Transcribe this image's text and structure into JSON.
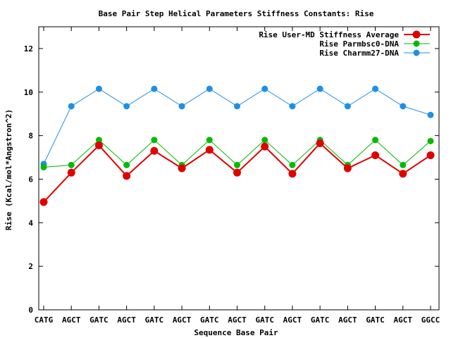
{
  "chart_data": {
    "type": "line",
    "title": "Base Pair Step Helical Parameters Stiffness Constants: Rise",
    "xlabel": "Sequence Base Pair",
    "ylabel": "Rise (Kcal/mol*Angstron^2)",
    "categories": [
      "CATG",
      "AGCT",
      "GATC",
      "AGCT",
      "GATC",
      "AGCT",
      "GATC",
      "AGCT",
      "GATC",
      "AGCT",
      "GATC",
      "AGCT",
      "GATC",
      "AGCT",
      "GGCC"
    ],
    "ylim": [
      0,
      13
    ],
    "yticks": [
      "0",
      "2",
      "4",
      "6",
      "8",
      "10",
      "12"
    ],
    "grid": false,
    "legend_position": "top-right",
    "series": [
      {
        "name": "Rise User-MD Stiffness Average",
        "color": "#e00000",
        "values": [
          4.95,
          6.3,
          7.55,
          6.15,
          7.3,
          6.5,
          7.35,
          6.3,
          7.5,
          6.25,
          7.65,
          6.5,
          7.1,
          6.25,
          7.1
        ]
      },
      {
        "name": "Rise Parmbsc0-DNA",
        "color": "#00bb00",
        "values": [
          6.55,
          6.65,
          7.8,
          6.65,
          7.8,
          6.65,
          7.8,
          6.65,
          7.8,
          6.65,
          7.8,
          6.65,
          7.8,
          6.65,
          7.75
        ]
      },
      {
        "name": "Rise Charmm27-DNA",
        "color": "#1e8fe8",
        "values": [
          6.7,
          9.35,
          10.15,
          9.35,
          10.15,
          9.35,
          10.15,
          9.35,
          10.15,
          9.35,
          10.15,
          9.35,
          10.15,
          9.35,
          8.95
        ]
      }
    ]
  }
}
